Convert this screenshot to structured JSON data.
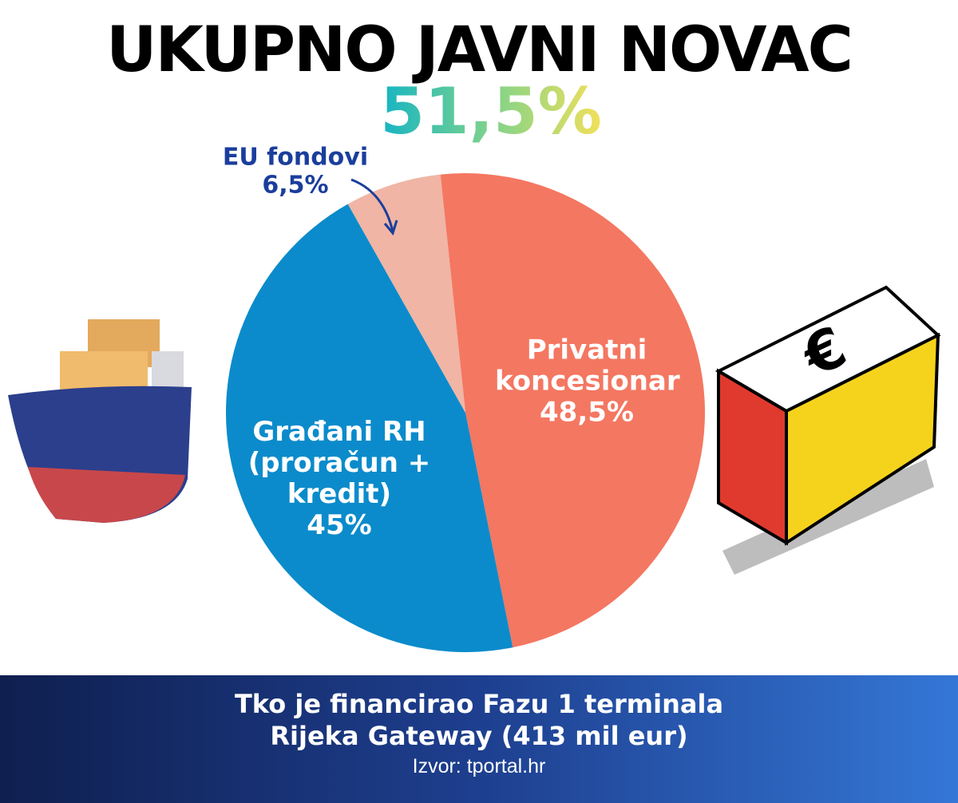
{
  "chart_data": {
    "type": "pie",
    "title": "UKUPNO JAVNI NOVAC",
    "subtitle": "51,5%",
    "categories": [
      "Privatni koncesionar",
      "Građani RH (proračun + kredit)",
      "EU fondovi"
    ],
    "values": [
      48.5,
      45,
      6.5
    ],
    "value_labels": [
      "48,5%",
      "45%",
      "6,5%"
    ],
    "colors": [
      "#f47761",
      "#0b8bcb",
      "#f0b5a4"
    ],
    "caption": "Tko je financirao Fazu 1 terminala Rijeka Gateway (413 mil eur)",
    "source": "Izvor: tportal.hr"
  }
}
